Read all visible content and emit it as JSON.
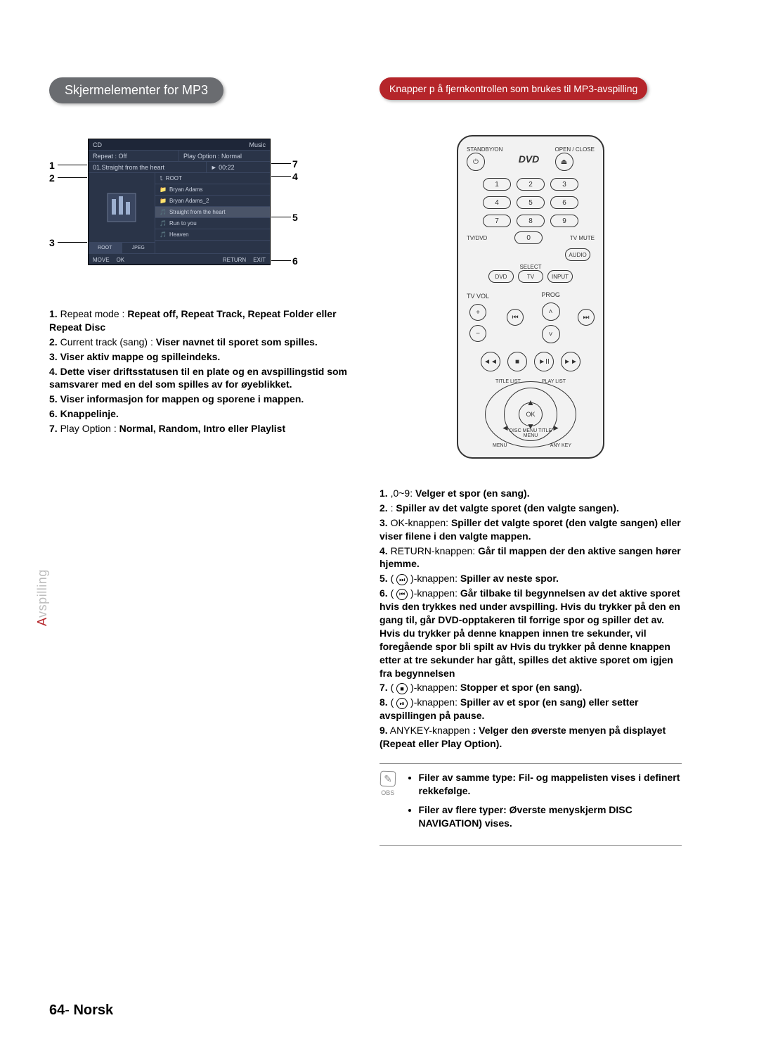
{
  "headers": {
    "left": "Skjermelementer for MP3",
    "right": "Knapper p å fjernkontrollen som brukes til MP3-avspilling"
  },
  "mp3": {
    "topbar_left": "CD",
    "topbar_right": "Music",
    "row1_left": "Repeat : Off",
    "row1_right": "Play Option : Normal",
    "row2_left": "01.Straight from the heart",
    "row2_right": "► 00:22",
    "art_tab1": "ROOT",
    "art_tab2": "JPEG",
    "list_items": [
      "ROOT",
      "Bryan Adams",
      "Bryan Adams_2",
      "Straight from the heart",
      "Run to you",
      "Heaven"
    ],
    "bottom": [
      "MOVE",
      "OK",
      "RETURN",
      "EXIT"
    ]
  },
  "left_list": [
    {
      "n": "1.",
      "plain": "Repeat mode : ",
      "bold": "Repeat off, Repeat Track, Repeat Folder eller Repeat Disc"
    },
    {
      "n": "2.",
      "plain": "Current track (sang) : ",
      "bold": "Viser navnet til sporet som spilles."
    },
    {
      "n": "3.",
      "bold": "Viser aktiv mappe og spilleindeks."
    },
    {
      "n": "4.",
      "bold": "Dette viser driftsstatusen til en plate og en avspillingstid som samsvarer med en del som spilles av for øyeblikket."
    },
    {
      "n": "5.",
      "bold": "Viser informasjon for mappen og sporene i mappen."
    },
    {
      "n": "6.",
      "bold": "Knappelinje."
    },
    {
      "n": "7.",
      "plain": "Play Option : ",
      "bold": "Normal, Random, Intro eller Playlist"
    }
  ],
  "remote": {
    "standby": "STANDBY/ON",
    "open": "OPEN / CLOSE",
    "logo": "DVD",
    "nums": [
      "1",
      "2",
      "3",
      "4",
      "5",
      "6",
      "7",
      "8",
      "9"
    ],
    "zero": "0",
    "tvdvd": "TV/DVD",
    "tvmute": "TV MUTE",
    "audio": "AUDIO",
    "select": "SELECT",
    "dvd": "DVD",
    "tv": "TV",
    "input": "INPUT",
    "tvvol": "TV VOL",
    "prog": "PROG",
    "titlelist": "TITLE LIST",
    "playlist": "PLAY LIST",
    "menu": "MENU",
    "anykey": "ANY KEY",
    "discmenu": "DISC MENU TITLE MENU",
    "ok": "OK"
  },
  "right_list": [
    {
      "n": "1.",
      "plain": " ,0~9: ",
      "bold": "Velger et spor (en sang)."
    },
    {
      "n": "2.",
      "plain": " : ",
      "bold": "Spiller av det valgte sporet (den valgte sangen)."
    },
    {
      "n": "3.",
      "plain": " OK-knappen: ",
      "bold": "Spiller det valgte sporet (den valgte sangen) eller viser filene i den valgte mappen."
    },
    {
      "n": "4.",
      "plain": " RETURN-knappen: ",
      "bold": "Går til mappen der den aktive sangen hører hjemme."
    },
    {
      "n": "5.",
      "icon": "⏭",
      "plain": ")-knappen: ",
      "bold": "Spiller av neste spor."
    },
    {
      "n": "6.",
      "icon": "⏮",
      "plain": ")-knappen: ",
      "bold": "Går tilbake til begynnelsen av det aktive sporet hvis den trykkes ned under avspilling. Hvis du trykker på den en gang til, går DVD-opptakeren til forrige spor og spiller det av. Hvis du trykker på denne knappen innen tre sekunder, vil foregående spor bli spilt av Hvis du trykker på denne knappen etter at tre sekunder har gått, spilles det aktive sporet om igjen fra begynnelsen"
    },
    {
      "n": "7.",
      "icon": "■",
      "plain": ")-knappen: ",
      "bold": "Stopper et spor (en sang)."
    },
    {
      "n": "8.",
      "icon": "⏯",
      "plain": ")-knappen: ",
      "bold": "Spiller av et spor (en sang) eller setter avspillingen på pause."
    },
    {
      "n": "9.",
      "plain": " ANYKEY-knappen ",
      "bold": ": Velger den øverste menyen på displayet (Repeat eller Play Option)."
    }
  ],
  "obs_label": "OBS",
  "obs": [
    "Filer av samme type: Fil- og mappelisten vises i definert rekkefølge.",
    "Filer av flere typer: Øverste menyskjerm DISC NAVIGATION) vises."
  ],
  "side_label": {
    "accent": "A",
    "rest": "vspilling"
  },
  "footer": {
    "page": "64",
    "sep": "- ",
    "lang": "Norsk"
  }
}
